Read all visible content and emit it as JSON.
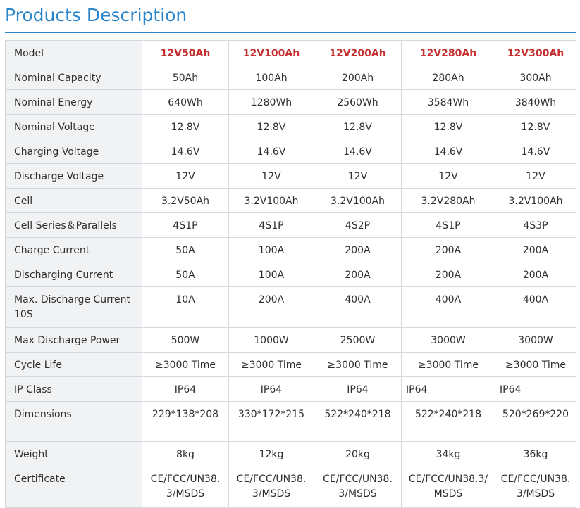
{
  "page": {
    "title": "Products Description"
  },
  "table": {
    "header": {
      "label": "Model",
      "models": [
        "12V50Ah",
        "12V100Ah",
        "12V200Ah",
        "12V280Ah",
        "12V300Ah"
      ]
    },
    "rows": [
      {
        "label": "Nominal Capacity",
        "values": [
          "50Ah",
          "100Ah",
          "200Ah",
          "280Ah",
          "300Ah"
        ]
      },
      {
        "label": "Nominal Energy",
        "values": [
          "640Wh",
          "1280Wh",
          "2560Wh",
          "3584Wh",
          "3840Wh"
        ]
      },
      {
        "label": "Nominal Voltage",
        "values": [
          "12.8V",
          "12.8V",
          "12.8V",
          "12.8V",
          "12.8V"
        ]
      },
      {
        "label": "Charging Voltage",
        "values": [
          "14.6V",
          "14.6V",
          "14.6V",
          "14.6V",
          "14.6V"
        ]
      },
      {
        "label": "Discharge Voltage",
        "values": [
          "12V",
          "12V",
          "12V",
          "12V",
          "12V"
        ]
      },
      {
        "label": "Cell",
        "values": [
          "3.2V50Ah",
          "3.2V100Ah",
          "3.2V100Ah",
          "3.2V280Ah",
          "3.2V100Ah"
        ]
      },
      {
        "label": "Cell Series＆Parallels",
        "values": [
          "4S1P",
          "4S1P",
          "4S2P",
          "4S1P",
          "4S3P"
        ]
      },
      {
        "label": "Charge Current",
        "values": [
          "50A",
          "100A",
          "200A",
          "200A",
          "200A"
        ]
      },
      {
        "label": "Discharging Current",
        "values": [
          "50A",
          "100A",
          "200A",
          "200A",
          "200A"
        ]
      },
      {
        "label": "Max. Discharge Current 10S",
        "values": [
          "10A",
          "200A",
          "400A",
          "400A",
          "400A"
        ]
      },
      {
        "label": "Max Discharge Power",
        "values": [
          "500W",
          "1000W",
          "2500W",
          "3000W",
          "3000W"
        ]
      },
      {
        "label": "Cycle Life",
        "values": [
          "≥3000 Time",
          "≥3000 Time",
          "≥3000 Time",
          "≥3000 Time",
          "≥3000 Time"
        ]
      },
      {
        "label": "IP Class",
        "values": [
          "IP64",
          "IP64",
          "IP64",
          "IP64",
          "IP64"
        ]
      },
      {
        "label": "Dimensions",
        "values": [
          "229*138*208",
          "330*172*215",
          "522*240*218",
          "522*240*218",
          "520*269*220"
        ]
      },
      {
        "label": "Weight",
        "values": [
          "8kg",
          "12kg",
          "20kg",
          "34kg",
          "36kg"
        ]
      },
      {
        "label": "Certificate",
        "values": [
          "CE/FCC/UN38.3/MSDS",
          "CE/FCC/UN38.3/MSDS",
          "CE/FCC/UN38.3/MSDS",
          "CE/FCC/UN38.3/MSDS",
          "CE/FCC/UN38.3/MSDS"
        ]
      }
    ]
  }
}
